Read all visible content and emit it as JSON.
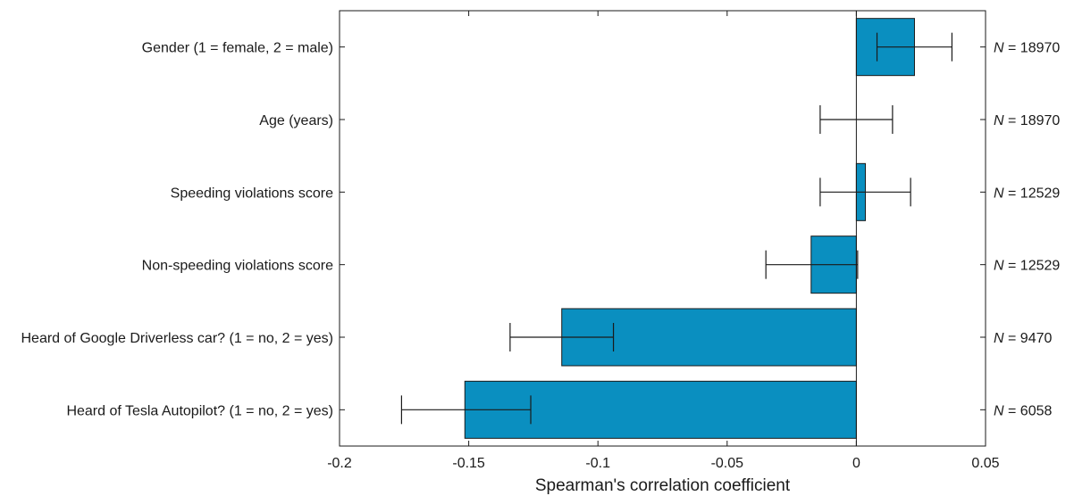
{
  "chart_data": {
    "type": "bar",
    "orientation": "horizontal",
    "xlabel": "Spearman's correlation coefficient",
    "xlim": [
      -0.2,
      0.05
    ],
    "xticks": [
      -0.2,
      -0.15,
      -0.1,
      -0.05,
      0,
      0.05
    ],
    "xtick_labels": [
      "-0.2",
      "-0.15",
      "-0.1",
      "-0.05",
      "0",
      "0.05"
    ],
    "bar_color": "#0A8FC0",
    "grid": false,
    "categories": [
      "Gender (1 = female, 2 = male)",
      "Age (years)",
      "Speeding violations score",
      "Non-speeding violations score",
      "Heard of Google Driverless car? (1 = no, 2 = yes)",
      "Heard of Tesla Autopilot? (1 = no, 2 = yes)"
    ],
    "values": [
      0.0225,
      0.0,
      0.0035,
      -0.0175,
      -0.114,
      -0.1515
    ],
    "ci_lower": [
      0.008,
      -0.014,
      -0.014,
      -0.035,
      -0.134,
      -0.176
    ],
    "ci_upper": [
      0.037,
      0.014,
      0.021,
      0.0005,
      -0.094,
      -0.126
    ],
    "n_prefix": "N",
    "n_values": [
      " = 18970",
      " = 18970",
      " = 12529",
      " = 12529",
      " = 9470",
      " = 6058"
    ]
  }
}
